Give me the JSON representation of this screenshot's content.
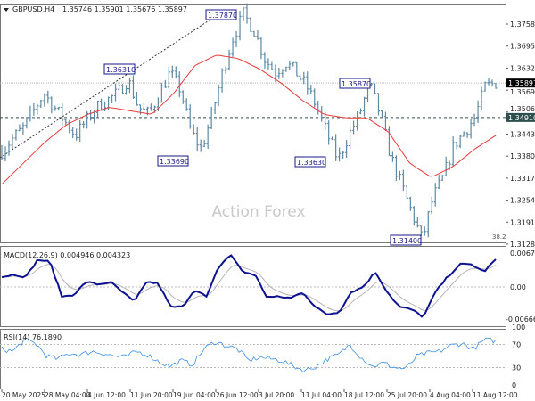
{
  "header": {
    "symbol": "GBPUSD,H4",
    "ohlc": "1.35746 1.35901 1.35676 1.35897"
  },
  "watermark": "Action Forex",
  "colors": {
    "bars": "#5f8aa3",
    "ma": "#e8393a",
    "macd": "#0d1290",
    "signal": "#b4b4b4",
    "rsi": "#3d8fe0",
    "current_price_box": "#000000",
    "level_box": "#2f4f4f"
  },
  "chart_data": [
    {
      "type": "bar",
      "title": "GBPUSD,H4",
      "price_axis_ticks": [
        "1.37585",
        "1.36955",
        "1.36325",
        "1.35695",
        "1.35065",
        "1.34435",
        "1.33805",
        "1.33175",
        "1.32545",
        "1.31915",
        "1.31285"
      ],
      "ylim": [
        1.31285,
        1.379
      ],
      "close": [
        1.3395,
        1.343,
        1.346,
        1.351,
        1.356,
        1.352,
        1.348,
        1.344,
        1.348,
        1.352,
        1.354,
        1.356,
        1.36,
        1.352,
        1.35,
        1.356,
        1.362,
        1.357,
        1.345,
        1.34,
        1.35,
        1.362,
        1.372,
        1.3787,
        1.374,
        1.366,
        1.362,
        1.365,
        1.362,
        1.358,
        1.352,
        1.344,
        1.337,
        1.344,
        1.35,
        1.3587,
        1.35,
        1.338,
        1.33,
        1.322,
        1.314,
        1.326,
        1.332,
        1.341,
        1.345,
        1.349,
        1.358,
        1.359
      ],
      "moving_average": [
        1.33,
        1.336,
        1.342,
        1.347,
        1.35,
        1.352,
        1.351,
        1.35,
        1.356,
        1.364,
        1.367,
        1.366,
        1.363,
        1.359,
        1.354,
        1.35,
        1.349,
        1.349,
        1.345,
        1.336,
        1.332,
        1.335,
        1.34,
        1.344
      ],
      "annotations": [
        {
          "text": "1.36310"
        },
        {
          "text": "1.37870"
        },
        {
          "text": "1.33690"
        },
        {
          "text": "1.33630"
        },
        {
          "text": "1.35870"
        },
        {
          "text": "1.31400"
        }
      ],
      "current_price": "1.35897",
      "level_line": "1.34910",
      "fib_label": "38.2"
    },
    {
      "type": "line",
      "title": "MACD(12,26,9) 0.004946 0.004323",
      "ticks": [
        "0.006772",
        "0.00",
        "-0.006667"
      ],
      "ylim": [
        -0.006667,
        0.006772
      ],
      "macd": [
        0.002,
        0.0025,
        0.002,
        0.0055,
        0.005,
        -0.002,
        -0.0015,
        0.001,
        0.0005,
        0.001,
        -0.001,
        -0.003,
        0.001,
        0.0007,
        -0.004,
        -0.004,
        -0.0005,
        -0.002,
        0.004,
        0.0065,
        0.003,
        0.0025,
        -0.002,
        -0.002,
        -0.0022,
        -0.001,
        -0.004,
        -0.0055,
        -0.005,
        -0.001,
        0.0,
        0.003,
        -0.001,
        -0.004,
        -0.0045,
        -0.006,
        -0.001,
        0.002,
        0.0045,
        0.0045,
        0.003,
        0.0055
      ]
    },
    {
      "type": "line",
      "title": "RSI(14) 76.1890",
      "ticks": [
        "100",
        "70",
        "30",
        "0"
      ],
      "ylim": [
        0,
        100
      ],
      "levels": [
        70,
        30
      ],
      "rsi": [
        62,
        58,
        78,
        72,
        50,
        45,
        55,
        52,
        58,
        55,
        50,
        48,
        58,
        52,
        40,
        32,
        42,
        35,
        62,
        75,
        68,
        62,
        42,
        48,
        45,
        42,
        32,
        25,
        32,
        45,
        52,
        70,
        48,
        32,
        38,
        30,
        28,
        50,
        55,
        58,
        68,
        72,
        62,
        78,
        76
      ]
    }
  ],
  "x_axis": {
    "labels": [
      "20 May 2025",
      "28 May 04:00",
      "4 Jun 12:00",
      "11 Jun 20:00",
      "19 Jun 04:00",
      "26 Jun 12:00",
      "3 Jul 20:00",
      "11 Jul 04:00",
      "18 Jul 12:00",
      "25 Jul 20:00",
      "4 Aug 04:00",
      "11 Aug 12:00"
    ]
  }
}
